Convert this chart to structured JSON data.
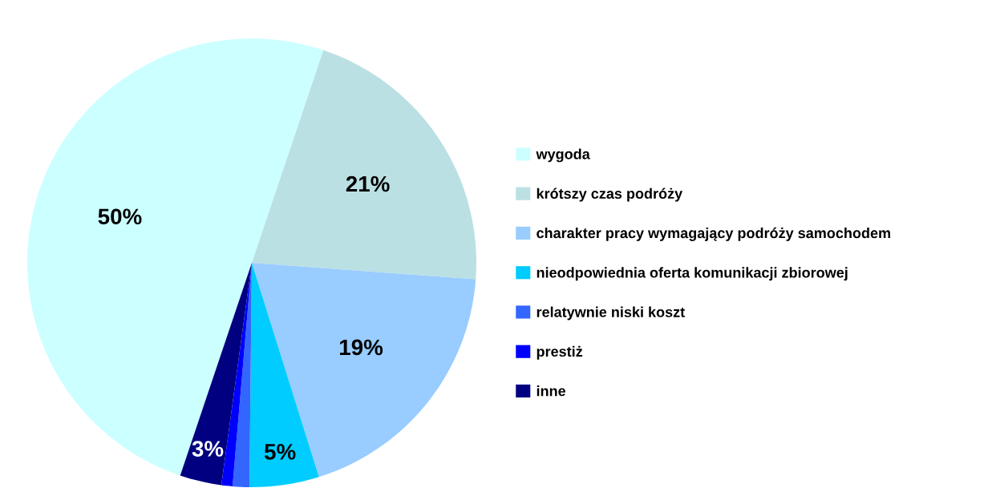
{
  "chart_data": {
    "type": "pie",
    "categories": [
      "wygoda",
      "krótszy czas podróży",
      "charakter pracy wymagający podróży samochodem",
      "nieodpowiednia oferta komunikacji zbiorowej",
      "relatywnie niski koszt",
      "prestiż",
      "inne"
    ],
    "values": [
      50,
      21,
      19,
      5,
      1.2,
      0.8,
      3
    ],
    "colors": [
      "#ccffff",
      "#bbe0e3",
      "#99ccff",
      "#00ccff",
      "#3366ff",
      "#0000ff",
      "#000080"
    ],
    "value_labels": [
      "50%",
      "21%",
      "19%",
      "5%",
      null,
      null,
      "3%"
    ],
    "legend": "right"
  }
}
